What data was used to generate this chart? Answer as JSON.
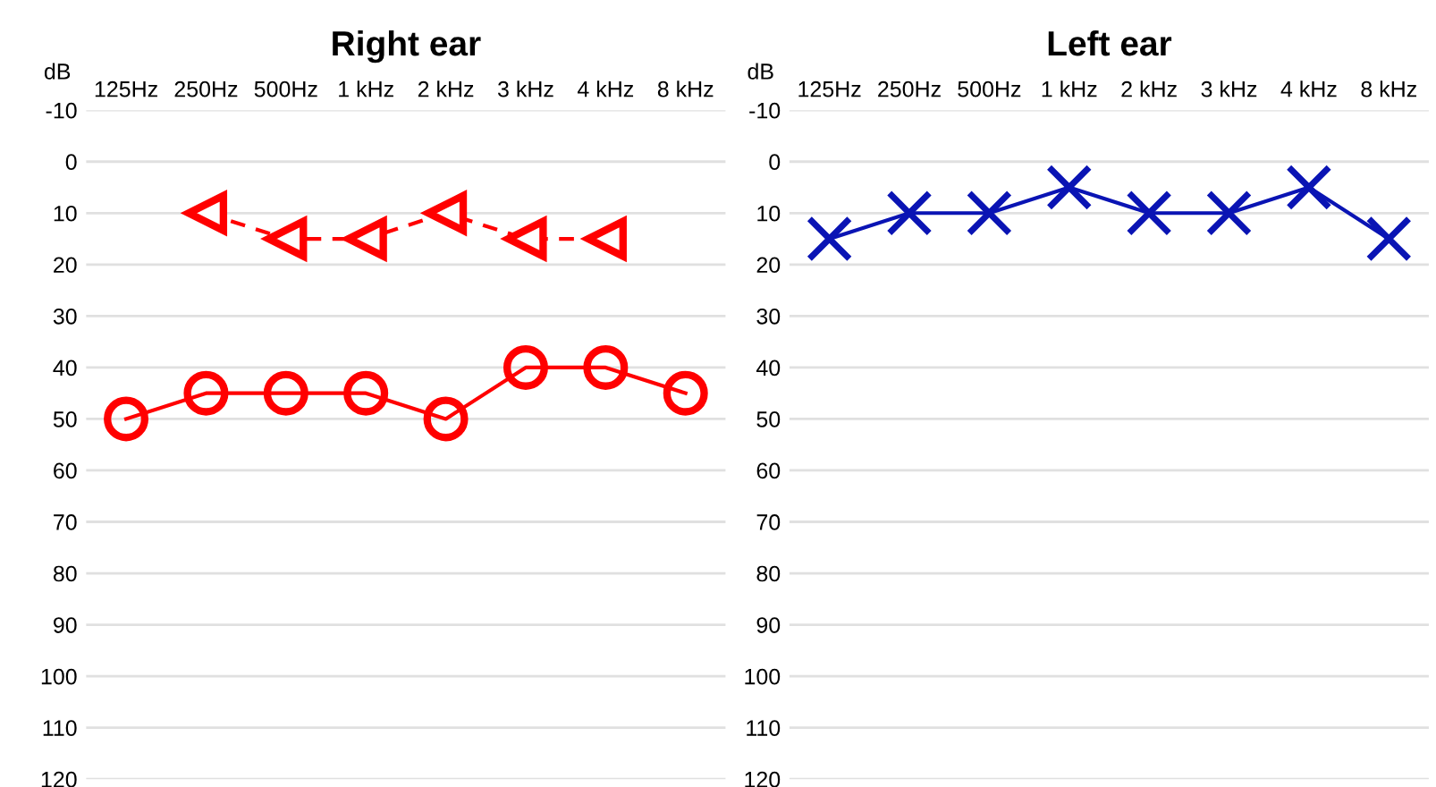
{
  "chart_data": [
    {
      "type": "line",
      "title": "Right ear",
      "ylabel": "dB",
      "categories": [
        "125Hz",
        "250Hz",
        "500Hz",
        "1 kHz",
        "2 kHz",
        "3 kHz",
        "4 kHz",
        "8 kHz"
      ],
      "ylim": [
        120,
        -10
      ],
      "yticks": [
        -10,
        0,
        10,
        20,
        30,
        40,
        50,
        60,
        70,
        80,
        90,
        100,
        110,
        120
      ],
      "grid": "y",
      "series": [
        {
          "color": "#ff0000",
          "marker": "circle",
          "line_style": "solid",
          "values": [
            50,
            45,
            45,
            45,
            50,
            40,
            40,
            45
          ]
        },
        {
          "color": "#ff0000",
          "marker": "triangle",
          "line_style": "dashed",
          "values": [
            null,
            10,
            15,
            15,
            10,
            15,
            15,
            null
          ]
        }
      ]
    },
    {
      "type": "line",
      "title": "Left ear",
      "ylabel": "dB",
      "categories": [
        "125Hz",
        "250Hz",
        "500Hz",
        "1 kHz",
        "2 kHz",
        "3 kHz",
        "4 kHz",
        "8 kHz"
      ],
      "ylim": [
        120,
        -10
      ],
      "yticks": [
        -10,
        0,
        10,
        20,
        30,
        40,
        50,
        60,
        70,
        80,
        90,
        100,
        110,
        120
      ],
      "grid": "y",
      "series": [
        {
          "color": "#0a14b4",
          "marker": "cross",
          "line_style": "solid",
          "values": [
            15,
            10,
            10,
            5,
            10,
            10,
            5,
            15
          ]
        }
      ]
    }
  ]
}
